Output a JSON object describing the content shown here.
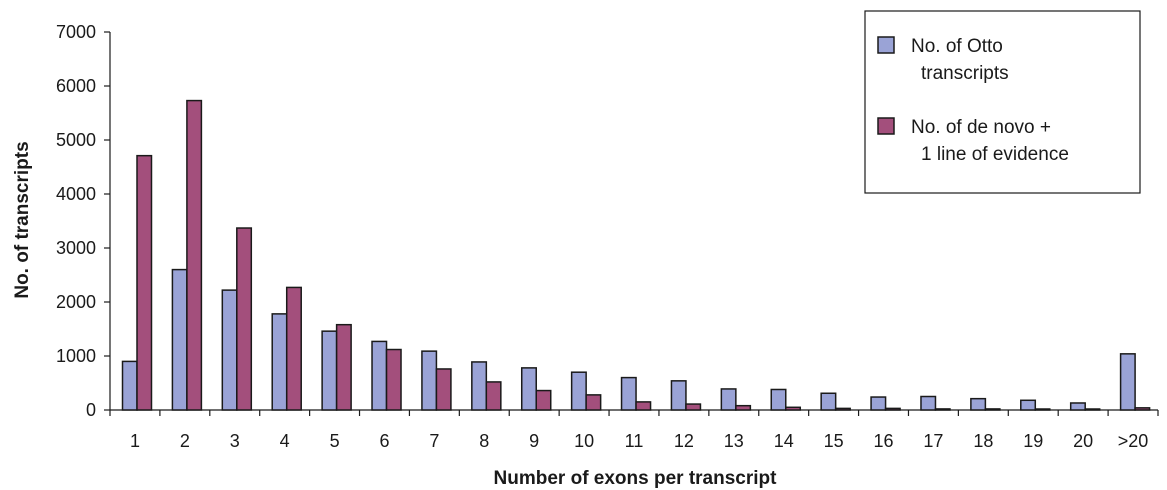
{
  "chart_data": {
    "type": "bar",
    "title": "",
    "xlabel": "Number of exons per transcript",
    "ylabel": "No. of transcripts",
    "ylim": [
      0,
      7000
    ],
    "yticks": [
      0,
      1000,
      2000,
      3000,
      4000,
      5000,
      6000,
      7000
    ],
    "grid": false,
    "legend_position": "top-right",
    "categories": [
      "1",
      "2",
      "3",
      "4",
      "5",
      "6",
      "7",
      "8",
      "9",
      "10",
      "11",
      "12",
      "13",
      "14",
      "15",
      "16",
      "17",
      "18",
      "19",
      "20",
      ">20"
    ],
    "series": [
      {
        "name": "No. of Otto transcripts",
        "legend_lines": [
          "No. of Otto",
          "transcripts"
        ],
        "color": "#9aa3d6",
        "values": [
          900,
          2600,
          2220,
          1780,
          1460,
          1270,
          1090,
          890,
          780,
          700,
          600,
          540,
          390,
          380,
          310,
          240,
          250,
          210,
          180,
          130,
          1040
        ]
      },
      {
        "name": "No. of de novo + 1 line of evidence",
        "legend_lines": [
          "No. of de novo +",
          "1 line of evidence"
        ],
        "color": "#a34f7c",
        "values": [
          4710,
          5730,
          3370,
          2270,
          1580,
          1120,
          760,
          520,
          360,
          280,
          150,
          110,
          80,
          50,
          30,
          30,
          20,
          20,
          15,
          10,
          40
        ]
      }
    ]
  }
}
